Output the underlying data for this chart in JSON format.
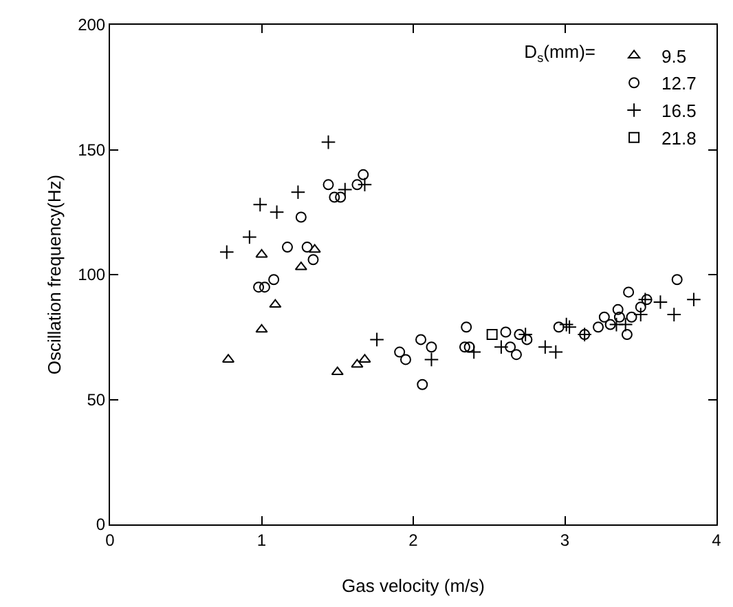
{
  "chart_data": {
    "type": "scatter",
    "xlabel": "Gas velocity (m/s)",
    "ylabel": "Oscillation frequency(Hz)",
    "legend_title": "D$_{s}$(mm)=",
    "legend": "top right",
    "grid": false,
    "xlim": [
      0,
      4
    ],
    "xticks": [
      0,
      1,
      2,
      3,
      4
    ],
    "ylim": [
      0,
      200
    ],
    "yticks": [
      0,
      50,
      100,
      150,
      200
    ],
    "series": [
      {
        "name": "9.5",
        "color": "#000000",
        "marker": "triangle",
        "x": [
          0.78,
          1.0,
          1.0,
          1.09,
          1.26,
          1.35,
          1.5,
          1.63,
          1.68
        ],
        "values": [
          66,
          78,
          108,
          88,
          103,
          110,
          61,
          64,
          66
        ]
      },
      {
        "name": "12.7",
        "color": "#000000",
        "marker": "circle",
        "x": [
          1.17,
          1.3,
          1.34,
          1.26,
          1.44,
          1.48,
          1.52,
          1.63,
          1.67,
          0.98,
          1.02,
          1.08,
          1.91,
          1.95,
          2.06,
          2.05,
          2.12,
          2.35,
          2.34,
          2.37,
          2.61,
          2.64,
          2.68,
          2.7,
          2.75,
          2.96,
          3.13,
          3.22,
          3.26,
          3.3,
          3.35,
          3.36,
          3.41,
          3.42,
          3.44,
          3.5,
          3.54,
          3.74
        ],
        "values": [
          111,
          111,
          106,
          123,
          136,
          131,
          131,
          136,
          140,
          95,
          95,
          98,
          69,
          66,
          56,
          74,
          71,
          79,
          71,
          71,
          77,
          71,
          68,
          76,
          74,
          79,
          76,
          79,
          83,
          80,
          86,
          83,
          76,
          93,
          83,
          87,
          90,
          98
        ]
      },
      {
        "name": "16.5",
        "color": "#000000",
        "marker": "cross",
        "x": [
          0.77,
          0.92,
          0.99,
          1.1,
          1.24,
          1.44,
          1.55,
          1.68,
          1.76,
          2.12,
          2.4,
          2.58,
          2.74,
          2.87,
          2.94,
          3.01,
          3.03,
          3.13,
          3.34,
          3.4,
          3.5,
          3.53,
          3.63,
          3.72,
          3.85
        ],
        "values": [
          109,
          115,
          128,
          125,
          133,
          153,
          134,
          136,
          74,
          66,
          69,
          71,
          76,
          71,
          69,
          80,
          79,
          76,
          80,
          80,
          84,
          90,
          89,
          84,
          90
        ]
      },
      {
        "name": "21.8",
        "color": "#000000",
        "marker": "square",
        "x": [
          2.52
        ],
        "values": [
          76
        ]
      }
    ]
  }
}
